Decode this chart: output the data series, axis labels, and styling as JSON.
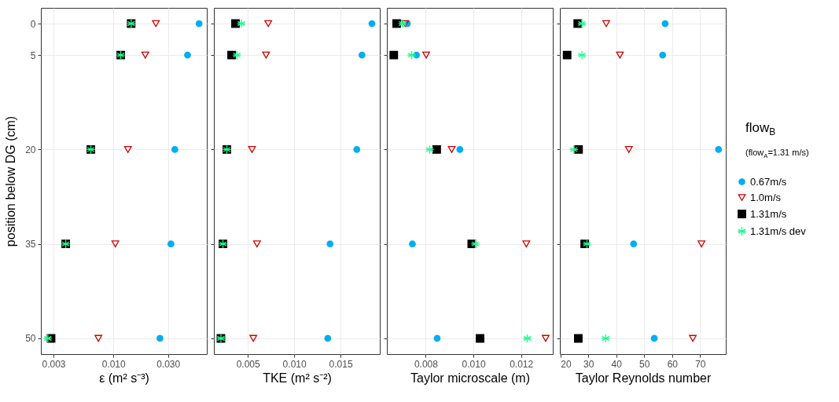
{
  "chart_data": [
    {
      "type": "scatter",
      "xlabel": "ε (m² s⁻³)",
      "ylabel": "position below DG (cm)",
      "log": "x",
      "grid": true,
      "xlim": [
        0.00233,
        0.0654
      ],
      "xticks": [
        {
          "value": 0.003,
          "label": "0.003"
        },
        {
          "value": 0.01,
          "label": "0.010"
        },
        {
          "value": 0.03,
          "label": "0.030"
        }
      ],
      "ylim": [
        52.5,
        -2.5
      ],
      "yticks": [
        0,
        5,
        20,
        35,
        50
      ],
      "series": [
        {
          "color": "#00aeef",
          "marker": "circle",
          "x": [
            0.056,
            0.0444,
            0.0344,
            0.0318,
            0.0255
          ],
          "values": [
            0,
            5,
            20,
            35,
            50
          ]
        },
        {
          "color": "#cc0000",
          "marker": "triangle",
          "x": [
            0.0235,
            0.019,
            0.0134,
            0.0104,
            0.0074
          ],
          "values": [
            0,
            5,
            20,
            35,
            50
          ]
        },
        {
          "color": "#000000",
          "marker": "square",
          "x": [
            0.0143,
            0.0116,
            0.00636,
            0.00384,
            0.00286
          ],
          "values": [
            0,
            5,
            20,
            35,
            50
          ]
        },
        {
          "color": "#1aff8c",
          "marker": "cross",
          "x": [
            0.0143,
            0.0116,
            0.00636,
            0.00384,
            0.00268
          ],
          "values": [
            0,
            5,
            20,
            35,
            50
          ]
        }
      ]
    },
    {
      "type": "scatter",
      "xlabel": "TKE (m² s⁻²)",
      "grid": true,
      "tick_labels": "x",
      "xlim": [
        0.00134,
        0.01923
      ],
      "xticks": [
        {
          "value": 0.005,
          "label": "0.005"
        },
        {
          "value": 0.01,
          "label": "0.010"
        },
        {
          "value": 0.015,
          "label": "0.015"
        }
      ],
      "ylim": [
        52.5,
        -2.5
      ],
      "yticks": [
        0,
        5,
        20,
        35,
        50
      ],
      "series": [
        {
          "color": "#00aeef",
          "marker": "circle",
          "x": [
            0.01838,
            0.01731,
            0.01675,
            0.01387,
            0.01362
          ],
          "values": [
            0,
            5,
            20,
            35,
            50
          ]
        },
        {
          "color": "#cc0000",
          "marker": "triangle",
          "x": [
            0.0072,
            0.00697,
            0.00545,
            0.00599,
            0.00559
          ],
          "values": [
            0,
            5,
            20,
            35,
            50
          ]
        },
        {
          "color": "#000000",
          "marker": "square",
          "x": [
            0.00367,
            0.00325,
            0.00274,
            0.00232,
            0.0021
          ],
          "values": [
            0,
            5,
            20,
            35,
            50
          ]
        },
        {
          "color": "#1aff8c",
          "marker": "cross",
          "x": [
            0.0043,
            0.00382,
            0.00274,
            0.00232,
            0.0021
          ],
          "values": [
            0,
            5,
            20,
            35,
            50
          ]
        }
      ]
    },
    {
      "type": "scatter",
      "xlabel": "Taylor microscale (m)",
      "grid": true,
      "tick_labels": "x",
      "xlim": [
        0.00637,
        0.01333
      ],
      "xticks": [
        {
          "value": 0.008,
          "label": "0.008"
        },
        {
          "value": 0.01,
          "label": "0.010"
        },
        {
          "value": 0.012,
          "label": "0.012"
        }
      ],
      "ylim": [
        52.5,
        -2.5
      ],
      "yticks": [
        0,
        5,
        20,
        35,
        50
      ],
      "series": [
        {
          "color": "#00aeef",
          "marker": "circle",
          "x": [
            0.00723,
            0.00761,
            0.00943,
            0.00744,
            0.00848
          ],
          "values": [
            0,
            5,
            20,
            35,
            50
          ]
        },
        {
          "color": "#cc0000",
          "marker": "triangle",
          "x": [
            0.00714,
            0.00802,
            0.00909,
            0.01222,
            0.01303
          ],
          "values": [
            0,
            5,
            20,
            35,
            50
          ]
        },
        {
          "color": "#000000",
          "marker": "square",
          "x": [
            0.00678,
            0.00666,
            0.00846,
            0.00993,
            0.01028
          ],
          "values": [
            0,
            5,
            20,
            35,
            50
          ]
        },
        {
          "color": "#1aff8c",
          "marker": "cross",
          "x": [
            0.00703,
            0.00741,
            0.00817,
            0.01008,
            0.01226
          ],
          "values": [
            0,
            5,
            20,
            35,
            50
          ]
        }
      ]
    },
    {
      "type": "scatter",
      "xlabel": "Taylor Reynolds number",
      "grid": true,
      "tick_labels": "x",
      "legend": "right",
      "legend_title": "flow$_{B}$",
      "annotations": [
        "(flow$_{A}$=1.31 m/s)"
      ],
      "xlim": [
        19.8,
        79.2
      ],
      "xticks": [
        20,
        30,
        40,
        50,
        60,
        70
      ],
      "ylim": [
        52.5,
        -2.5
      ],
      "yticks": [
        0,
        5,
        20,
        35,
        50
      ],
      "series": [
        {
          "name": "0.67m/s",
          "color": "#00aeef",
          "marker": "circle",
          "x": [
            57.5,
            56.6,
            76.6,
            46.2,
            53.6
          ],
          "values": [
            0,
            5,
            20,
            35,
            50
          ]
        },
        {
          "name": "1.0m/s",
          "color": "#cc0000",
          "marker": "triangle",
          "x": [
            36.4,
            41.3,
            44.5,
            70.5,
            67.4
          ],
          "values": [
            0,
            5,
            20,
            35,
            50
          ]
        },
        {
          "name": "1.31m/s",
          "color": "#000000",
          "marker": "square",
          "x": [
            26.2,
            22.4,
            26.5,
            28.7,
            26.4
          ],
          "values": [
            0,
            5,
            20,
            35,
            50
          ]
        },
        {
          "name": "1.31m/s dev",
          "color": "#1aff8c",
          "marker": "cross",
          "x": [
            27.7,
            27.7,
            24.8,
            29.5,
            36.2
          ],
          "values": [
            0,
            5,
            20,
            35,
            50
          ]
        }
      ]
    }
  ]
}
